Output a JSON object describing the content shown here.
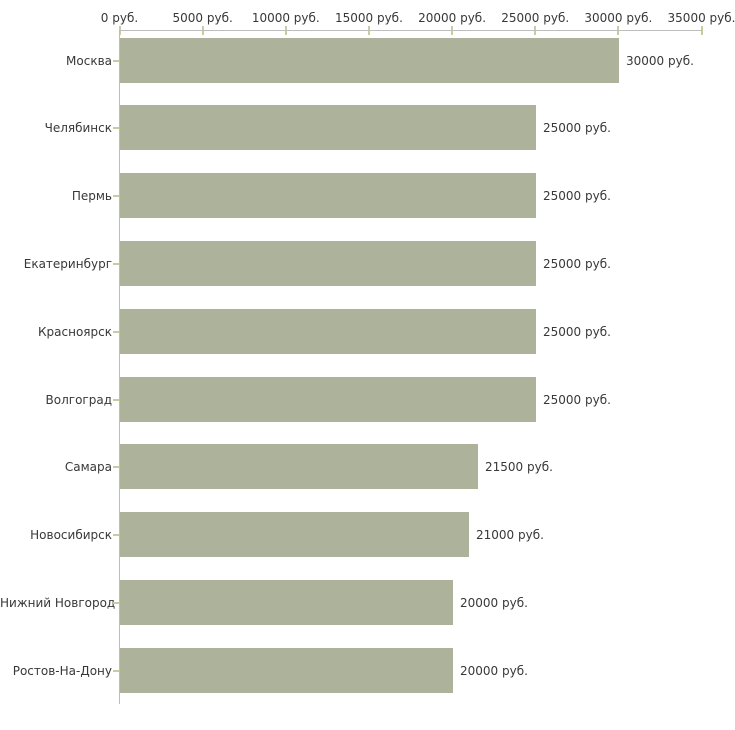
{
  "chart_data": {
    "type": "bar",
    "orientation": "horizontal",
    "title": "",
    "xlabel": "",
    "ylabel": "",
    "categories": [
      "Москва",
      "Челябинск",
      "Пермь",
      "Екатеринбург",
      "Красноярск",
      "Волгоград",
      "Самара",
      "Новосибирск",
      "Нижний Новгород",
      "Ростов-На-Дону"
    ],
    "values": [
      30000,
      25000,
      25000,
      25000,
      25000,
      25000,
      21500,
      21000,
      20000,
      20000
    ],
    "value_labels": [
      "30000 руб.",
      "25000 руб.",
      "25000 руб.",
      "25000 руб.",
      "25000 руб.",
      "25000 руб.",
      "21500 руб.",
      "21000 руб.",
      "20000 руб.",
      "20000 руб."
    ],
    "x_axis": {
      "position": "top",
      "min": 0,
      "max": 35000,
      "tick_step": 5000,
      "tick_labels": [
        "0 руб.",
        "5000 руб.",
        "10000 руб.",
        "15000 руб.",
        "20000 руб.",
        "25000 руб.",
        "30000 руб.",
        "35000 руб."
      ]
    },
    "grid": false,
    "legend": false,
    "colors": {
      "bar": "#adb29a",
      "axis_line": "#bdbdbd",
      "tick_mark": "#cbcb9e",
      "text": "#383838",
      "background": "#ffffff"
    }
  }
}
